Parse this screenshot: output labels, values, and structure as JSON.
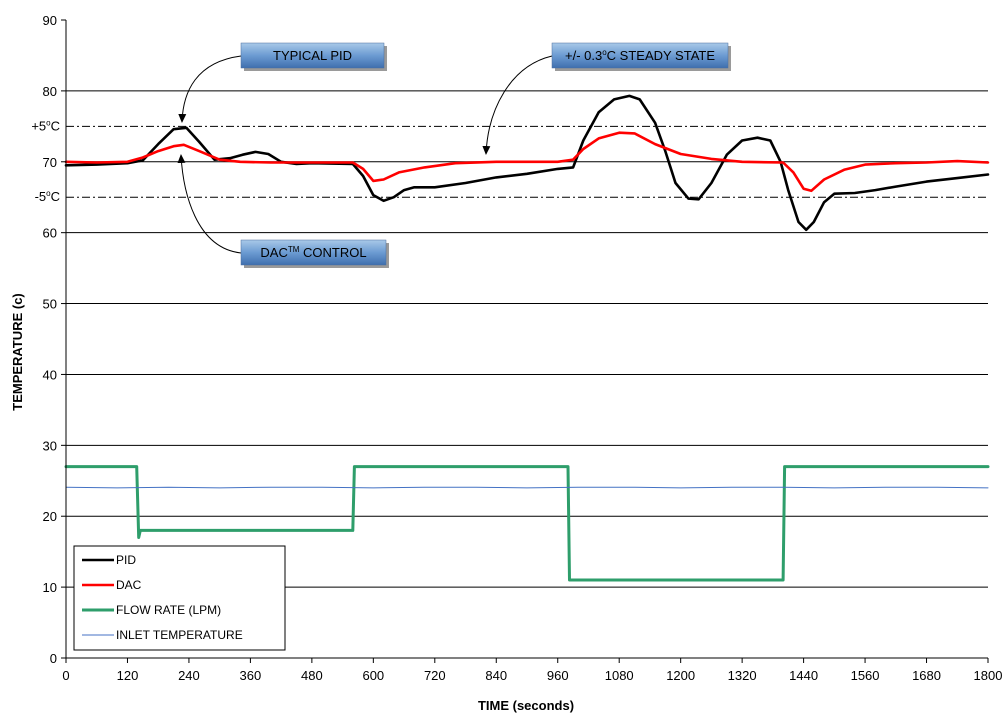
{
  "chart_data": {
    "type": "line",
    "xlabel": "TIME (seconds)",
    "ylabel": "TEMPERATURE (c)",
    "xlim": [
      0,
      1800
    ],
    "ylim": [
      0,
      90
    ],
    "x_ticks": [
      0,
      120,
      240,
      360,
      480,
      600,
      720,
      840,
      960,
      1080,
      1200,
      1320,
      1440,
      1560,
      1680,
      1800
    ],
    "y_ticks": [
      0,
      10,
      20,
      30,
      40,
      50,
      60,
      70,
      80,
      90
    ],
    "y_grid": [
      10,
      20,
      30,
      40,
      50,
      60,
      70,
      80
    ],
    "band_lines": [
      {
        "label": "+5oC",
        "value": 75
      },
      {
        "label": "-5oC",
        "value": 65
      }
    ],
    "legend_position": "bottom-left",
    "series": [
      {
        "name": "PID",
        "color": "#000000",
        "points": [
          [
            0,
            69.5
          ],
          [
            60,
            69.6
          ],
          [
            120,
            69.8
          ],
          [
            150,
            70.2
          ],
          [
            180,
            72.5
          ],
          [
            210,
            74.6
          ],
          [
            235,
            74.8
          ],
          [
            260,
            72.8
          ],
          [
            290,
            70.3
          ],
          [
            320,
            70.5
          ],
          [
            345,
            71.0
          ],
          [
            370,
            71.4
          ],
          [
            395,
            71.1
          ],
          [
            420,
            70.0
          ],
          [
            450,
            69.7
          ],
          [
            480,
            69.8
          ],
          [
            560,
            69.7
          ],
          [
            580,
            68.0
          ],
          [
            600,
            65.3
          ],
          [
            620,
            64.5
          ],
          [
            640,
            65.0
          ],
          [
            660,
            66.0
          ],
          [
            680,
            66.4
          ],
          [
            720,
            66.4
          ],
          [
            780,
            67.0
          ],
          [
            840,
            67.8
          ],
          [
            900,
            68.3
          ],
          [
            960,
            69.0
          ],
          [
            990,
            69.2
          ],
          [
            1010,
            73.0
          ],
          [
            1040,
            77.0
          ],
          [
            1070,
            78.8
          ],
          [
            1100,
            79.3
          ],
          [
            1120,
            78.8
          ],
          [
            1150,
            75.5
          ],
          [
            1170,
            71.5
          ],
          [
            1190,
            67.0
          ],
          [
            1215,
            64.8
          ],
          [
            1235,
            64.7
          ],
          [
            1260,
            67.0
          ],
          [
            1290,
            71.0
          ],
          [
            1320,
            73.0
          ],
          [
            1350,
            73.4
          ],
          [
            1375,
            73.0
          ],
          [
            1395,
            70.0
          ],
          [
            1410,
            66.0
          ],
          [
            1430,
            61.5
          ],
          [
            1445,
            60.4
          ],
          [
            1460,
            61.5
          ],
          [
            1480,
            64.3
          ],
          [
            1500,
            65.5
          ],
          [
            1540,
            65.6
          ],
          [
            1580,
            66.0
          ],
          [
            1620,
            66.5
          ],
          [
            1680,
            67.2
          ],
          [
            1740,
            67.7
          ],
          [
            1800,
            68.2
          ]
        ]
      },
      {
        "name": "DAC",
        "color": "#ff0000",
        "points": [
          [
            0,
            70.0
          ],
          [
            60,
            69.9
          ],
          [
            120,
            70.0
          ],
          [
            150,
            70.6
          ],
          [
            180,
            71.5
          ],
          [
            210,
            72.2
          ],
          [
            230,
            72.4
          ],
          [
            260,
            71.5
          ],
          [
            300,
            70.3
          ],
          [
            340,
            70.0
          ],
          [
            400,
            69.9
          ],
          [
            480,
            69.9
          ],
          [
            560,
            69.9
          ],
          [
            580,
            69.0
          ],
          [
            600,
            67.3
          ],
          [
            620,
            67.5
          ],
          [
            650,
            68.5
          ],
          [
            700,
            69.2
          ],
          [
            760,
            69.8
          ],
          [
            840,
            70.0
          ],
          [
            960,
            70.0
          ],
          [
            990,
            70.3
          ],
          [
            1010,
            71.8
          ],
          [
            1040,
            73.3
          ],
          [
            1080,
            74.1
          ],
          [
            1110,
            74.0
          ],
          [
            1150,
            72.5
          ],
          [
            1200,
            71.1
          ],
          [
            1260,
            70.4
          ],
          [
            1320,
            70.0
          ],
          [
            1400,
            69.9
          ],
          [
            1420,
            68.5
          ],
          [
            1440,
            66.2
          ],
          [
            1455,
            65.9
          ],
          [
            1480,
            67.5
          ],
          [
            1520,
            68.9
          ],
          [
            1560,
            69.6
          ],
          [
            1620,
            69.8
          ],
          [
            1680,
            69.9
          ],
          [
            1740,
            70.1
          ],
          [
            1800,
            69.9
          ]
        ]
      },
      {
        "name": "FLOW RATE (LPM)",
        "color": "#2e9e6b",
        "points": [
          [
            0,
            27
          ],
          [
            138,
            27
          ],
          [
            142,
            17
          ],
          [
            145,
            18
          ],
          [
            560,
            18
          ],
          [
            563,
            27
          ],
          [
            980,
            27
          ],
          [
            983,
            11
          ],
          [
            1400,
            11
          ],
          [
            1403,
            27
          ],
          [
            1800,
            27
          ]
        ]
      },
      {
        "name": "INLET TEMPERATURE",
        "color": "#4472c4",
        "points": [
          [
            0,
            24.1
          ],
          [
            100,
            24.0
          ],
          [
            200,
            24.1
          ],
          [
            300,
            24.0
          ],
          [
            400,
            24.1
          ],
          [
            500,
            24.1
          ],
          [
            600,
            24.0
          ],
          [
            700,
            24.1
          ],
          [
            800,
            24.1
          ],
          [
            900,
            24.0
          ],
          [
            1000,
            24.1
          ],
          [
            1100,
            24.1
          ],
          [
            1200,
            24.0
          ],
          [
            1300,
            24.1
          ],
          [
            1400,
            24.1
          ],
          [
            1500,
            24.0
          ],
          [
            1600,
            24.1
          ],
          [
            1700,
            24.1
          ],
          [
            1800,
            24.0
          ]
        ]
      }
    ],
    "annotations": [
      {
        "text": "TYPICAL PID",
        "sup": "",
        "text_after": "",
        "target": [
          230,
          75.2
        ]
      },
      {
        "text": "+/- 0.3",
        "sup": "o",
        "text_after": "C STEADY STATE",
        "target": [
          820,
          70.2
        ]
      },
      {
        "text": "DAC",
        "sup": "TM",
        "text_after": " CONTROL",
        "target": [
          228,
          72.6
        ]
      }
    ]
  }
}
